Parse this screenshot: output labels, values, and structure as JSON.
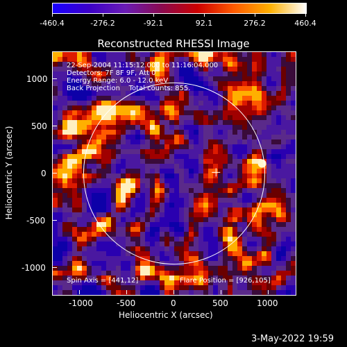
{
  "colorbar": {
    "tick_labels": [
      "-460.4",
      "-276.2",
      "-92.1",
      "92.1",
      "276.2",
      "460.4"
    ],
    "colors": [
      "#1a00ff",
      "#3b00c8",
      "#6a1cb5",
      "#8a0a50",
      "#cc0000",
      "#ff5a00",
      "#ffb000",
      "#ffffff"
    ]
  },
  "title": "Reconstructed RHESSI Image",
  "overlay": {
    "line1": "22-Sep-2004 11:15:12.000 to 11:16:04.000",
    "line2": "Detectors: 7F 8F 9F, Att 0",
    "line3": "Energy Range: 6.0 - 12.0 keV",
    "line4": "Back Projection    Total counts: 855.",
    "spin_axis": "Spin Axis = [441,12]",
    "flare_position": "Flare Position = [926,105]"
  },
  "axes": {
    "xlabel": "Heliocentric X (arcsec)",
    "ylabel": "Heliocentric Y (arcsec)",
    "x_ticks": [
      "-1000",
      "-500",
      "0",
      "500",
      "1000"
    ],
    "y_ticks": [
      "1000",
      "500",
      "0",
      "-500",
      "-1000"
    ]
  },
  "footer": {
    "date": "3-May-2022 19:59"
  },
  "chart_data": {
    "type": "heatmap",
    "title": "Reconstructed RHESSI Image",
    "xlabel": "Heliocentric X (arcsec)",
    "ylabel": "Heliocentric Y (arcsec)",
    "xlim": [
      -1280,
      1280
    ],
    "ylim": [
      -1280,
      1280
    ],
    "colorbar_range": [
      -460.4,
      460.4
    ],
    "solar_disk_radius": 955,
    "spin_axis": [
      441,
      12
    ],
    "flare_position": [
      926,
      105
    ]
  }
}
